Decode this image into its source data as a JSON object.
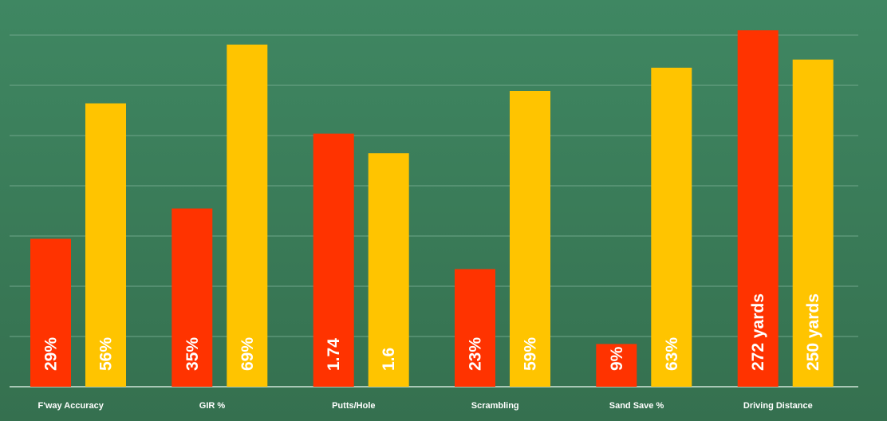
{
  "chart_data": {
    "type": "bar",
    "categories": [
      "F'way Accuracy",
      "GIR %",
      "Putts/Hole",
      "Scrambling",
      "Sand Save %",
      "Driving Distance"
    ],
    "series": [
      {
        "color": "#ff3300",
        "values": [
          29,
          35,
          1.74,
          23,
          9,
          272
        ],
        "labels": [
          "29%",
          "35%",
          "1.74",
          "23%",
          "9%",
          "272 yards"
        ],
        "bar_level": [
          0.415,
          0.5,
          0.71,
          0.33,
          0.12,
          1.0
        ]
      },
      {
        "color": "#ffc400",
        "values": [
          56,
          69,
          1.6,
          59,
          63,
          250
        ],
        "labels": [
          "56%",
          "69%",
          "1.6",
          "59%",
          "63%",
          "250 yards"
        ],
        "bar_level": [
          0.795,
          0.96,
          0.655,
          0.83,
          0.895,
          0.918
        ]
      }
    ],
    "grid": true,
    "legend": "none",
    "title": "",
    "xlabel": "",
    "ylabel": ""
  }
}
